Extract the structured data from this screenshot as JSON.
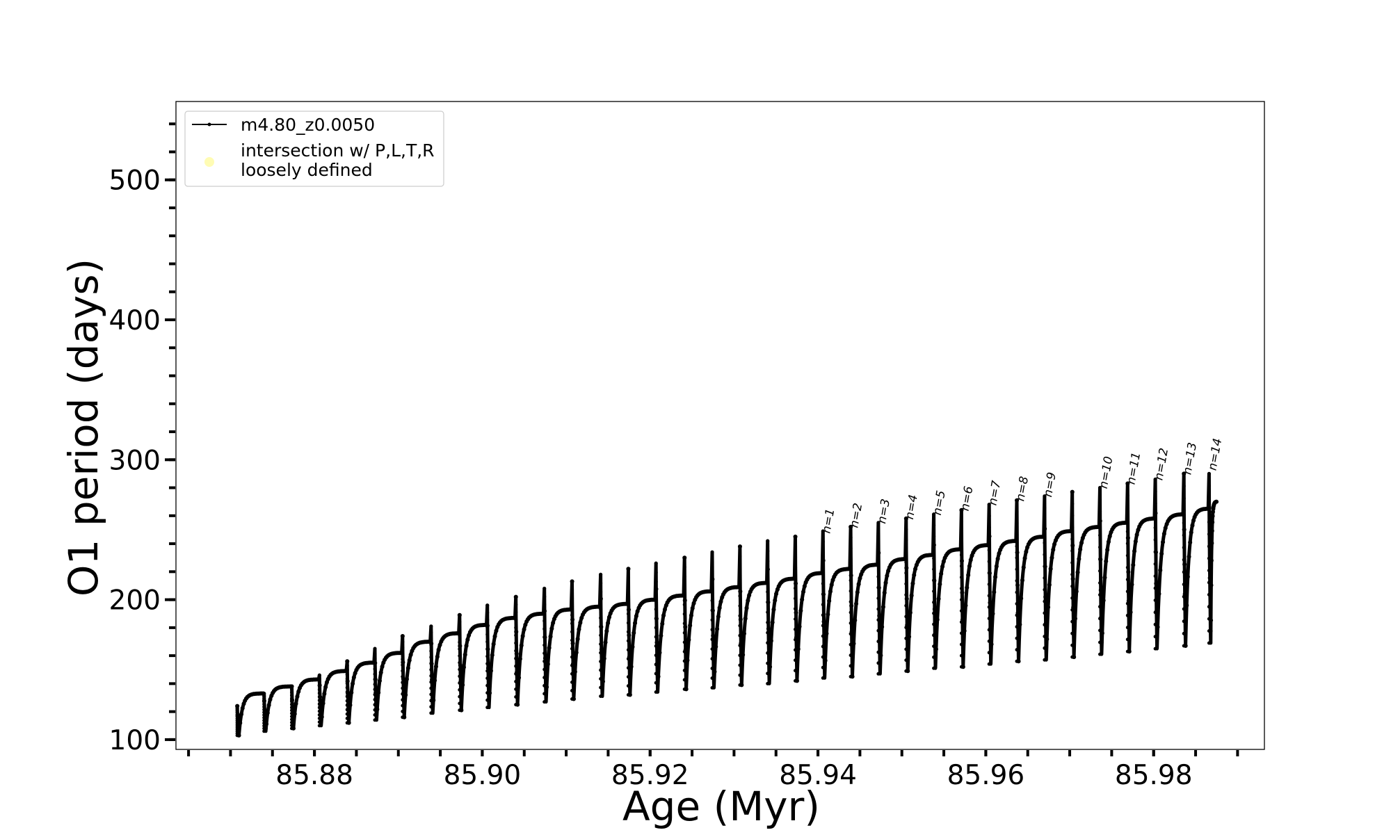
{
  "chart_data": {
    "type": "line",
    "xlabel": "Age (Myr)",
    "ylabel": "O1 period (days)",
    "xlim": [
      85.8635,
      85.9932
    ],
    "ylim": [
      93,
      556
    ],
    "x_ticks": [
      85.88,
      85.9,
      85.92,
      85.94,
      85.96,
      85.98
    ],
    "x_tick_labels": [
      "85.88",
      "85.90",
      "85.92",
      "85.94",
      "85.96",
      "85.98"
    ],
    "y_ticks": [
      100,
      200,
      300,
      400,
      500
    ],
    "y_tick_labels": [
      "100",
      "200",
      "300",
      "400",
      "500"
    ],
    "grid": false,
    "legend_position": "upper left",
    "series": [
      {
        "name": "m4.80_z0.0050",
        "color": "#000000",
        "marker": "dot",
        "pulse_ages": [
          85.8708,
          85.874,
          85.8773,
          85.8806,
          85.8839,
          85.8872,
          85.8905,
          85.8939,
          85.8973,
          85.9006,
          85.904,
          85.9074,
          85.9107,
          85.9141,
          85.9174,
          85.9207,
          85.9241,
          85.9274,
          85.9307,
          85.934,
          85.9373,
          85.9406,
          85.9439,
          85.9472,
          85.9505,
          85.9538,
          85.9571,
          85.9604,
          85.9637,
          85.967,
          85.9703,
          85.9736,
          85.9769,
          85.9802,
          85.9836,
          85.9866
        ],
        "spike_peak": [
          124,
          133,
          138,
          146,
          156,
          165,
          174,
          181,
          189,
          196,
          202,
          208,
          213,
          218,
          222,
          226,
          230,
          234,
          238,
          242,
          245,
          249,
          252,
          255,
          258,
          261,
          264,
          268,
          271,
          274,
          277,
          280,
          283,
          286,
          290,
          290
        ],
        "cycle_minimum": [
          103,
          106,
          108,
          110,
          112,
          114,
          116,
          119,
          121,
          123,
          125,
          127,
          129,
          131,
          132,
          134,
          136,
          137,
          139,
          140,
          142,
          144,
          145,
          147,
          149,
          151,
          152,
          154,
          156,
          157,
          159,
          161,
          163,
          165,
          167,
          169
        ],
        "cycle_plateau": [
          133,
          138,
          143,
          149,
          155,
          162,
          170,
          176,
          182,
          187,
          190,
          193,
          195,
          197,
          200,
          203,
          206,
          209,
          212,
          215,
          219,
          222,
          225,
          229,
          232,
          236,
          239,
          242,
          245,
          249,
          252,
          255,
          258,
          261,
          265,
          268
        ],
        "end_age": 85.9876,
        "end_value": 270
      },
      {
        "name": "intersection w/ P,L,T,R\nloosely defined",
        "color": "#fffcb4",
        "marker": "circle",
        "points": []
      }
    ],
    "legend": [
      {
        "label_lines": [
          "m4.80_z0.0050"
        ]
      },
      {
        "label_lines": [
          "intersection w/ P,L,T,R",
          "loosely defined"
        ]
      }
    ],
    "annotations": [
      {
        "text": "n=1",
        "x": 85.9401,
        "y": 244
      },
      {
        "text": "n=2",
        "x": 85.9434,
        "y": 248
      },
      {
        "text": "n=3",
        "x": 85.9467,
        "y": 251
      },
      {
        "text": "n=4",
        "x": 85.95,
        "y": 254
      },
      {
        "text": "n=5",
        "x": 85.9533,
        "y": 257
      },
      {
        "text": "n=6",
        "x": 85.9566,
        "y": 260
      },
      {
        "text": "n=7",
        "x": 85.9599,
        "y": 264
      },
      {
        "text": "n=8",
        "x": 85.9632,
        "y": 267
      },
      {
        "text": "n=9",
        "x": 85.9665,
        "y": 270
      },
      {
        "text": "n=10",
        "x": 85.9731,
        "y": 276
      },
      {
        "text": "n=11",
        "x": 85.9764,
        "y": 279
      },
      {
        "text": "n=12",
        "x": 85.9797,
        "y": 282
      },
      {
        "text": "n=13",
        "x": 85.9831,
        "y": 286
      },
      {
        "text": "n=14",
        "x": 85.9861,
        "y": 289
      }
    ]
  }
}
